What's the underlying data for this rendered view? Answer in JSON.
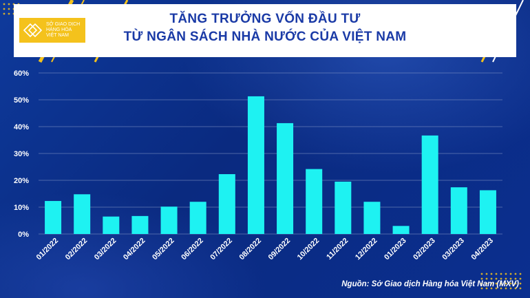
{
  "logo": {
    "line1": "SỞ GIAO DỊCH",
    "line2": "HÀNG HÓA",
    "line3": "VIỆT NAM"
  },
  "source": "Nguồn: Sở Giao dịch Hàng hóa Việt Nam (MXV)",
  "colors": {
    "bar": "#1ef2f2",
    "background": "#0b2a7a",
    "title": "#1a3aa6",
    "accent": "#f4c21c",
    "axis_text": "#ffffff",
    "grid": "#8a9bc8"
  },
  "chart_data": {
    "type": "bar",
    "title_line1": "TĂNG TRƯỞNG VỐN ĐẦU TƯ",
    "title_line2": "TỪ NGÂN SÁCH NHÀ NƯỚC CỦA VIỆT NAM",
    "categories": [
      "01/2022",
      "02/2022",
      "03/2022",
      "04/2022",
      "05/2022",
      "06/2022",
      "07/2022",
      "08/2022",
      "09/2022",
      "10/2022",
      "11/2022",
      "12/2022",
      "01/2023",
      "02/2023",
      "03/2023",
      "04/2023"
    ],
    "values": [
      12.3,
      14.8,
      6.5,
      6.7,
      10.2,
      12.0,
      22.3,
      51.3,
      41.3,
      24.2,
      19.5,
      12.0,
      3.0,
      36.7,
      17.4,
      16.3
    ],
    "ylim": [
      0,
      60
    ],
    "yticks": [
      0,
      10,
      20,
      30,
      40,
      50,
      60
    ],
    "ytick_labels": [
      "0%",
      "10%",
      "20%",
      "30%",
      "40%",
      "50%",
      "60%"
    ],
    "grid": true,
    "legend": "none"
  }
}
